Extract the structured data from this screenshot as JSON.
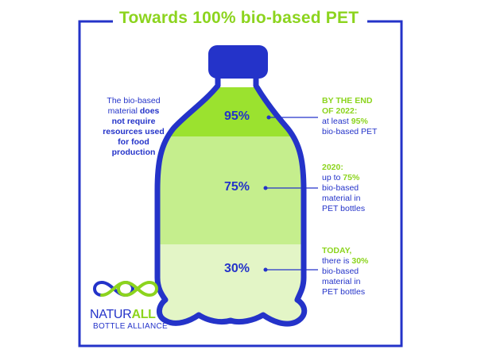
{
  "title": "Towards 100% bio-based PET",
  "note": {
    "line1": "The bio-based",
    "line2_plain": "material ",
    "line2_bold": "does",
    "line3": "not require",
    "line4": "resources used",
    "line5": "for food",
    "line6": "production"
  },
  "levels": [
    {
      "percent": "95%",
      "value": 95
    },
    {
      "percent": "75%",
      "value": 75
    },
    {
      "percent": "30%",
      "value": 30
    }
  ],
  "annotations": {
    "a2022": {
      "head1": "BY THE END",
      "head2": "OF 2022:",
      "text_pre": "at least ",
      "text_pct": "95%",
      "text_post": "bio-based PET"
    },
    "a2020": {
      "head": "2020:",
      "text_pre": "up to ",
      "text_pct": "75%",
      "line2": "bio-based",
      "line3": "material in",
      "line4": "PET bottles"
    },
    "today": {
      "head": "TODAY,",
      "text_pre": "there is ",
      "text_pct": "30%",
      "line2": "bio-based",
      "line3": "material in",
      "line4": "PET bottles"
    }
  },
  "logo": {
    "brand_plain": "NATUR",
    "brand_accent": "ALL",
    "subtitle": "BOTTLE ALLIANCE"
  },
  "colors": {
    "blue": "#2433c9",
    "green": "#8cd41e",
    "fill_95": "#9be22f",
    "fill_75": "#c5ee8d",
    "fill_30": "#e3f5c6"
  }
}
